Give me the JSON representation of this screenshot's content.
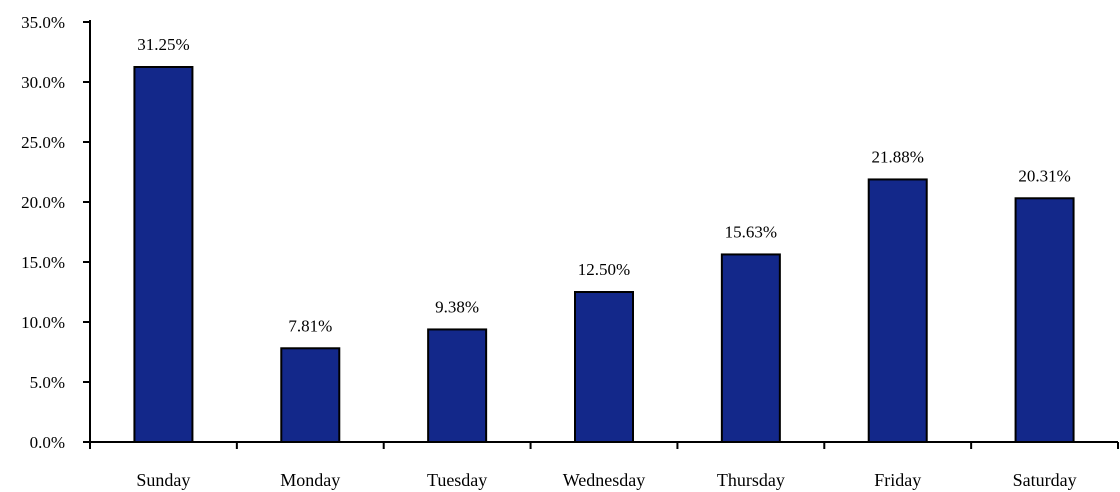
{
  "chart_data": {
    "type": "bar",
    "title": "",
    "xlabel": "",
    "ylabel": "",
    "categories": [
      "Sunday",
      "Monday",
      "Tuesday",
      "Wednesday",
      "Thursday",
      "Friday",
      "Saturday"
    ],
    "values": [
      31.25,
      7.81,
      9.38,
      12.5,
      15.63,
      21.88,
      20.31
    ],
    "value_labels": [
      "31.25%",
      "7.81%",
      "9.38%",
      "12.50%",
      "15.63%",
      "21.88%",
      "20.31%"
    ],
    "ylim": [
      0,
      35
    ],
    "yticks": [
      0,
      5,
      10,
      15,
      20,
      25,
      30,
      35
    ],
    "ytick_labels": [
      "0.0%",
      "5.0%",
      "10.0%",
      "15.0%",
      "20.0%",
      "25.0%",
      "30.0%",
      "35.0%"
    ],
    "bar_color": "#13288a",
    "grid": false,
    "legend": "none"
  }
}
